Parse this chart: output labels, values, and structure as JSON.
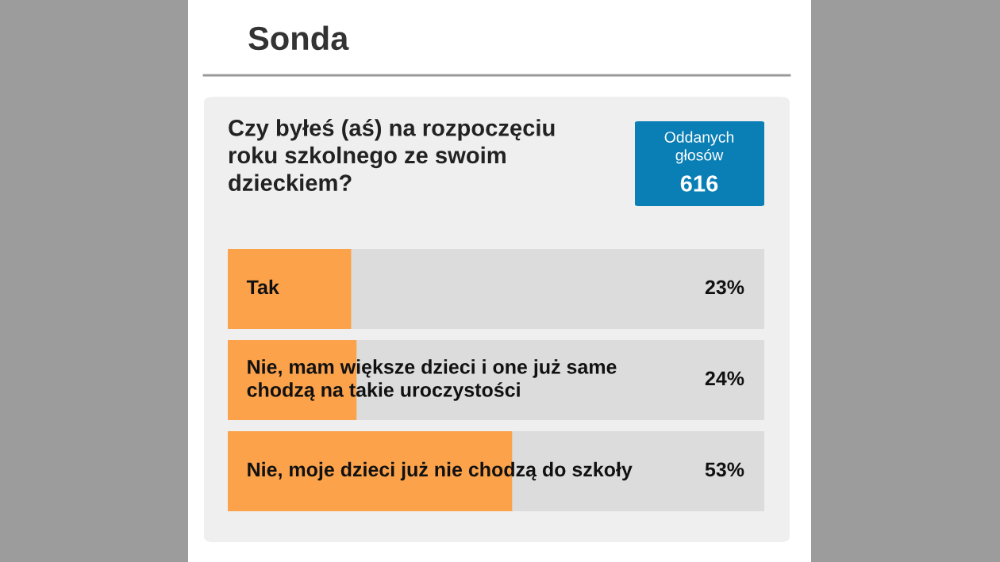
{
  "chart_data": {
    "type": "bar",
    "orientation": "horizontal",
    "title": "Sonda",
    "subtitle": "Czy byłeś (aś) na rozpoczęciu roku szkolnego ze swoim dzieckiem?",
    "categories": [
      "Tak",
      "Nie, mam większe dzieci i one już same chodzą na takie uroczystości",
      "Nie, moje dzieci już nie chodzą do szkoły"
    ],
    "values": [
      23,
      24,
      53
    ],
    "value_labels": [
      "23%",
      "24%",
      "53%"
    ],
    "color": "#fba24b",
    "xlim": [
      0,
      100
    ],
    "legend": false,
    "annotations": [
      "Oddanych głosów",
      "616"
    ]
  }
}
